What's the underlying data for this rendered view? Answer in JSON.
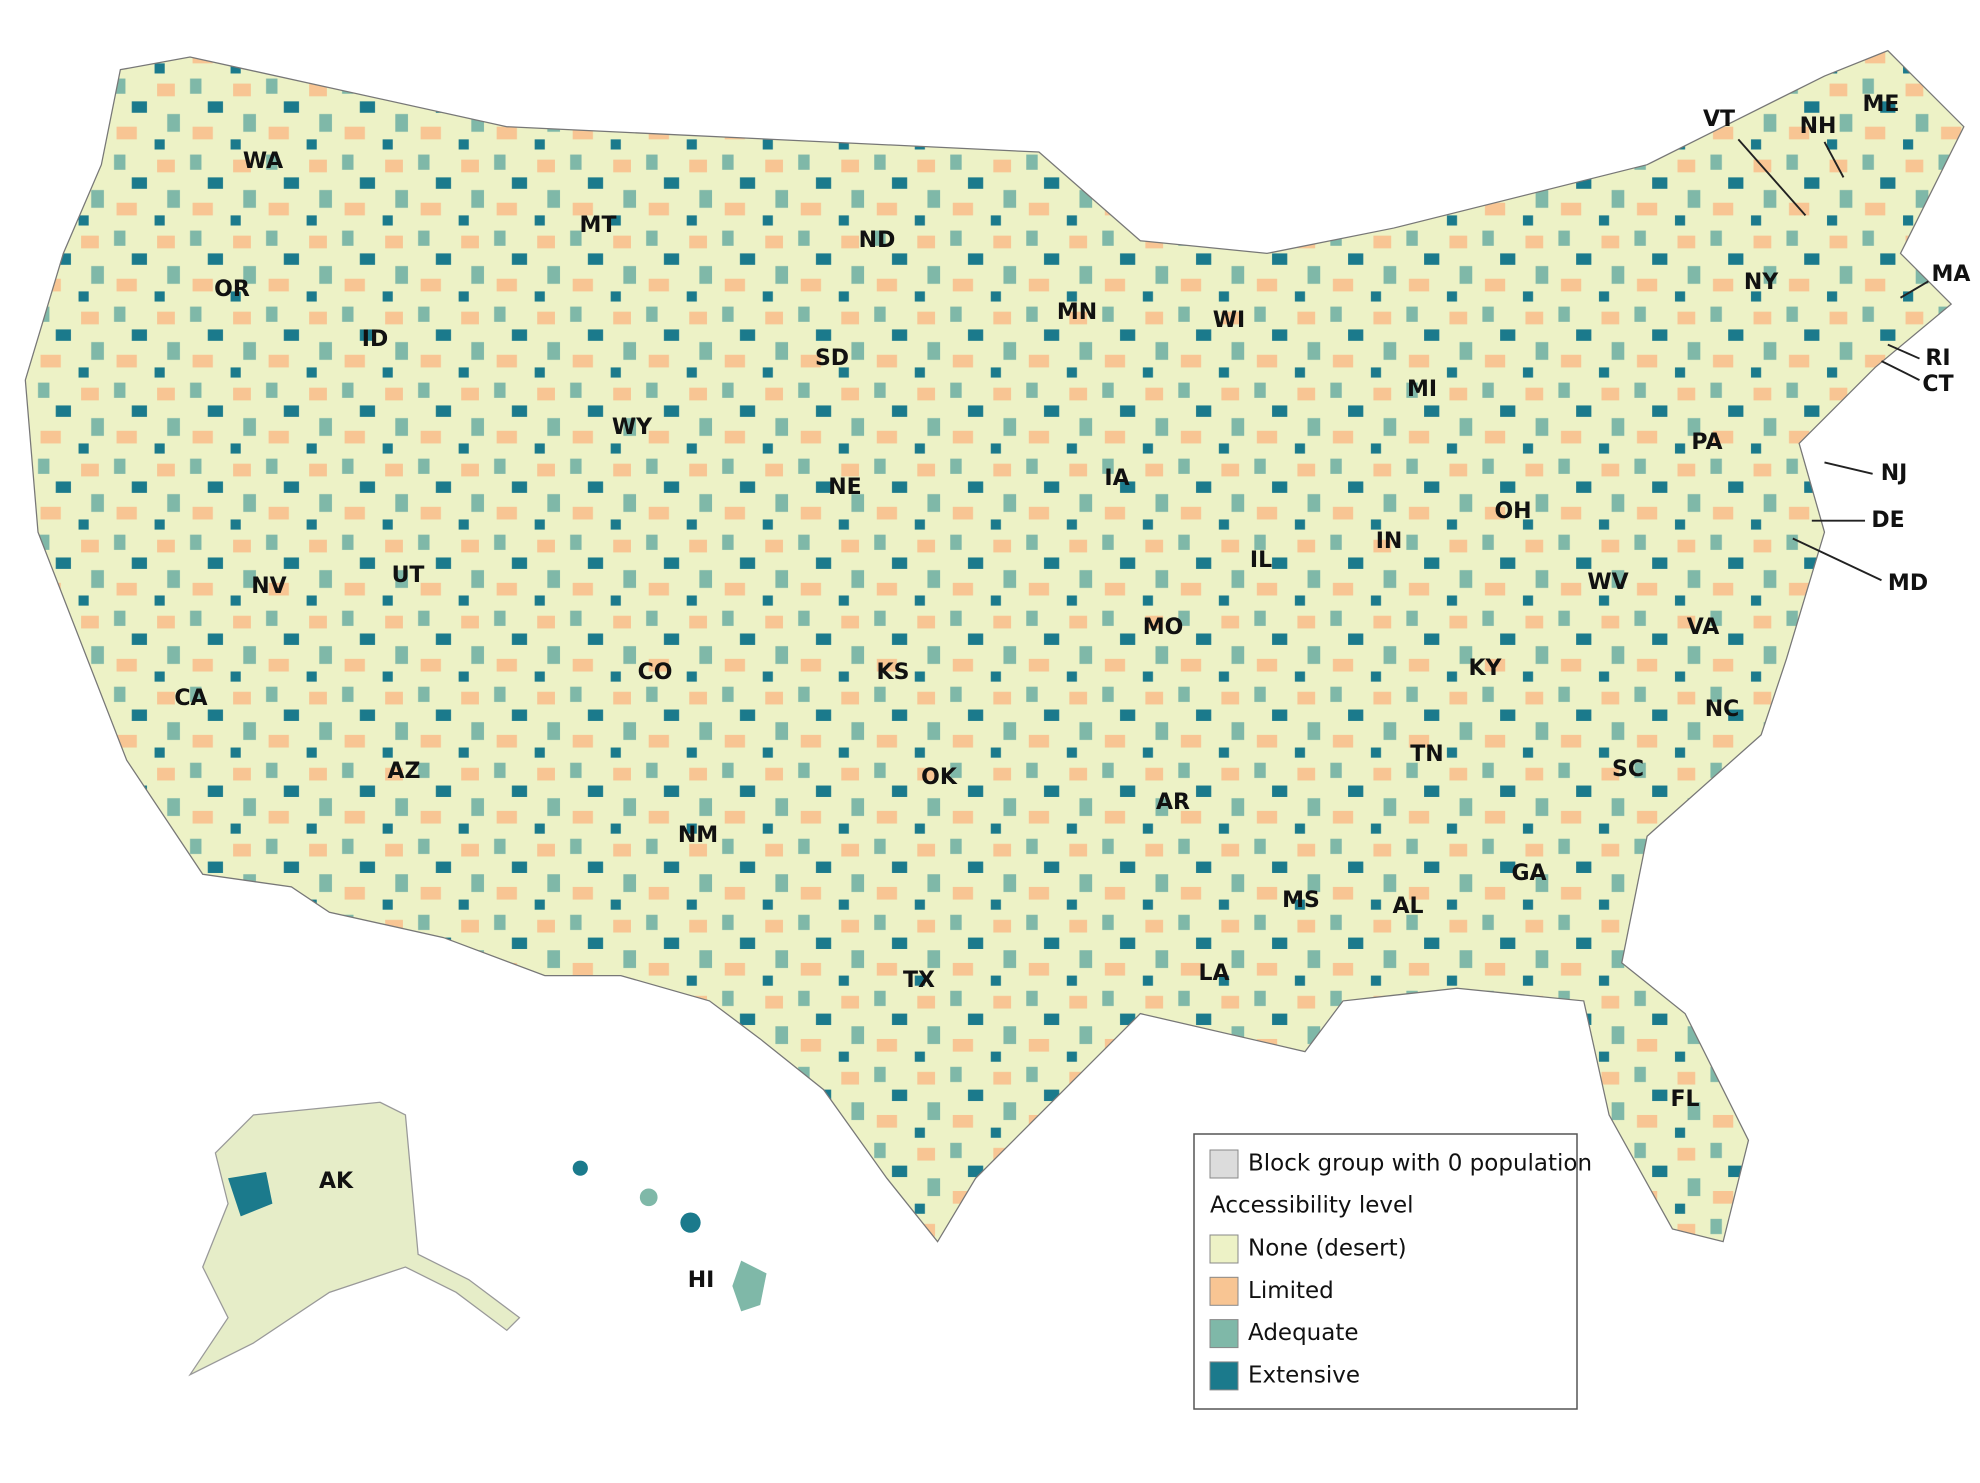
{
  "states": [
    "WA",
    "OR",
    "ID",
    "MT",
    "ND",
    "SD",
    "WY",
    "MN",
    "WI",
    "MI",
    "NY",
    "ME",
    "VT",
    "NH",
    "MA",
    "RI",
    "CT",
    "NJ",
    "DE",
    "MD",
    "PA",
    "OH",
    "IN",
    "IL",
    "IA",
    "NE",
    "NV",
    "UT",
    "CO",
    "KS",
    "MO",
    "KY",
    "WV",
    "VA",
    "NC",
    "TN",
    "SC",
    "AR",
    "OK",
    "CA",
    "AZ",
    "NM",
    "TX",
    "LA",
    "MS",
    "AL",
    "GA",
    "FL",
    "AK",
    "HI"
  ],
  "legend": {
    "zero_population": {
      "label": "Block group with 0 population",
      "color": "#dcdcdc"
    },
    "title": "Accessibility level",
    "levels": [
      {
        "label": "None (desert)",
        "color": "#edf2c6"
      },
      {
        "label": "Limited",
        "color": "#f8c593"
      },
      {
        "label": "Adequate",
        "color": "#7fb8a8"
      },
      {
        "label": "Extensive",
        "color": "#1b7a8c"
      }
    ]
  }
}
